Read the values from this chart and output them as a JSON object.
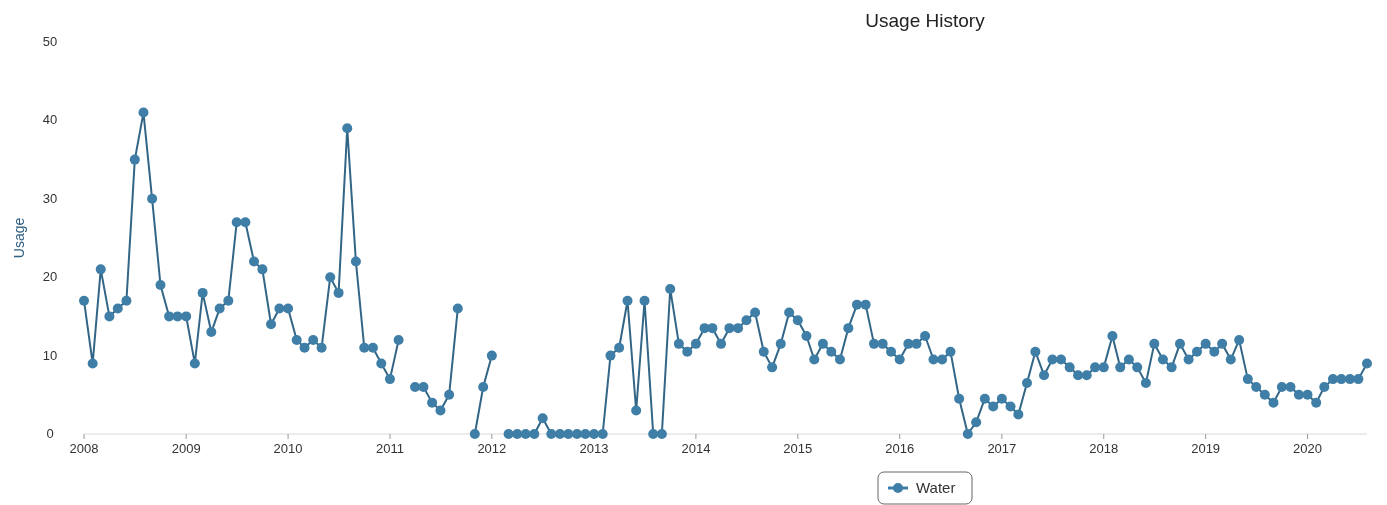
{
  "chart_data": {
    "type": "line",
    "title": "Usage History",
    "ylabel": "Usage",
    "x": [
      "2008-01",
      "2008-02",
      "2008-03",
      "2008-04",
      "2008-05",
      "2008-06",
      "2008-07",
      "2008-08",
      "2008-09",
      "2008-10",
      "2008-11",
      "2008-12",
      "2009-01",
      "2009-02",
      "2009-03",
      "2009-04",
      "2009-05",
      "2009-06",
      "2009-07",
      "2009-08",
      "2009-09",
      "2009-10",
      "2009-11",
      "2009-12",
      "2010-01",
      "2010-02",
      "2010-03",
      "2010-04",
      "2010-05",
      "2010-06",
      "2010-07",
      "2010-08",
      "2010-09",
      "2010-10",
      "2010-11",
      "2010-12",
      "2011-01",
      "2011-02",
      "2011-03",
      "2011-04",
      "2011-05",
      "2011-06",
      "2011-07",
      "2011-08",
      "2011-09",
      "2011-10",
      "2011-11",
      "2011-12",
      "2012-01",
      "2012-02",
      "2012-03",
      "2012-04",
      "2012-05",
      "2012-06",
      "2012-07",
      "2012-08",
      "2012-09",
      "2012-10",
      "2012-11",
      "2012-12",
      "2013-01",
      "2013-02",
      "2013-03",
      "2013-04",
      "2013-05",
      "2013-06",
      "2013-07",
      "2013-08",
      "2013-09",
      "2013-10",
      "2013-11",
      "2013-12",
      "2014-01",
      "2014-02",
      "2014-03",
      "2014-04",
      "2014-05",
      "2014-06",
      "2014-07",
      "2014-08",
      "2014-09",
      "2014-10",
      "2014-11",
      "2014-12",
      "2015-01",
      "2015-02",
      "2015-03",
      "2015-04",
      "2015-05",
      "2015-06",
      "2015-07",
      "2015-08",
      "2015-09",
      "2015-10",
      "2015-11",
      "2015-12",
      "2016-01",
      "2016-02",
      "2016-03",
      "2016-04",
      "2016-05",
      "2016-06",
      "2016-07",
      "2016-08",
      "2016-09",
      "2016-10",
      "2016-11",
      "2016-12",
      "2017-01",
      "2017-02",
      "2017-03",
      "2017-04",
      "2017-05",
      "2017-06",
      "2017-07",
      "2017-08",
      "2017-09",
      "2017-10",
      "2017-11",
      "2017-12",
      "2018-01",
      "2018-02",
      "2018-03",
      "2018-04",
      "2018-05",
      "2018-06",
      "2018-07",
      "2018-08",
      "2018-09",
      "2018-10",
      "2018-11",
      "2018-12",
      "2019-01",
      "2019-02",
      "2019-03",
      "2019-04",
      "2019-05",
      "2019-06",
      "2019-07",
      "2019-08",
      "2019-09",
      "2019-10",
      "2019-11",
      "2019-12",
      "2020-01",
      "2020-02",
      "2020-03",
      "2020-04",
      "2020-05",
      "2020-06",
      "2020-07",
      "2020-08"
    ],
    "series": [
      {
        "name": "Water",
        "color": "#3f7ea6",
        "values": [
          17,
          9,
          21,
          15,
          16,
          17,
          35,
          41,
          30,
          19,
          15,
          15,
          15,
          9,
          18,
          13,
          16,
          17,
          27,
          27,
          22,
          21,
          14,
          16,
          16,
          12,
          11,
          12,
          11,
          20,
          18,
          39,
          22,
          11,
          11,
          9,
          7,
          12,
          null,
          6,
          6,
          4,
          3,
          5,
          16,
          null,
          0,
          6,
          10,
          null,
          0,
          0,
          0,
          0,
          2,
          0,
          0,
          0,
          0,
          0,
          0,
          0,
          10,
          11,
          17,
          3,
          17,
          0,
          0,
          18.5,
          11.5,
          10.5,
          11.5,
          13.5,
          13.5,
          11.5,
          13.5,
          13.5,
          14.5,
          15.5,
          10.5,
          8.5,
          11.5,
          15.5,
          14.5,
          12.5,
          9.5,
          11.5,
          10.5,
          9.5,
          13.5,
          16.5,
          16.5,
          11.5,
          11.5,
          10.5,
          9.5,
          11.5,
          11.5,
          12.5,
          9.5,
          9.5,
          10.5,
          4.5,
          0,
          1.5,
          4.5,
          3.5,
          4.5,
          3.5,
          2.5,
          6.5,
          10.5,
          7.5,
          9.5,
          9.5,
          8.5,
          7.5,
          7.5,
          8.5,
          8.5,
          12.5,
          8.5,
          9.5,
          8.5,
          6.5,
          11.5,
          9.5,
          8.5,
          11.5,
          9.5,
          10.5,
          11.5,
          10.5,
          11.5,
          9.5,
          12,
          7,
          6,
          5,
          4,
          6,
          6,
          5,
          5,
          4,
          6,
          7,
          7,
          7,
          7,
          9
        ]
      }
    ],
    "xlim": [
      "2008-01",
      "2020-08"
    ],
    "xticks": [
      "2008",
      "2009",
      "2010",
      "2011",
      "2012",
      "2013",
      "2014",
      "2015",
      "2016",
      "2017",
      "2018",
      "2019",
      "2020"
    ],
    "ylim": [
      0,
      50
    ],
    "yticks": [
      0,
      10,
      20,
      30,
      40,
      50
    ],
    "grid": false,
    "legend": "bottom",
    "marker": "circle",
    "line_style": "solid"
  }
}
